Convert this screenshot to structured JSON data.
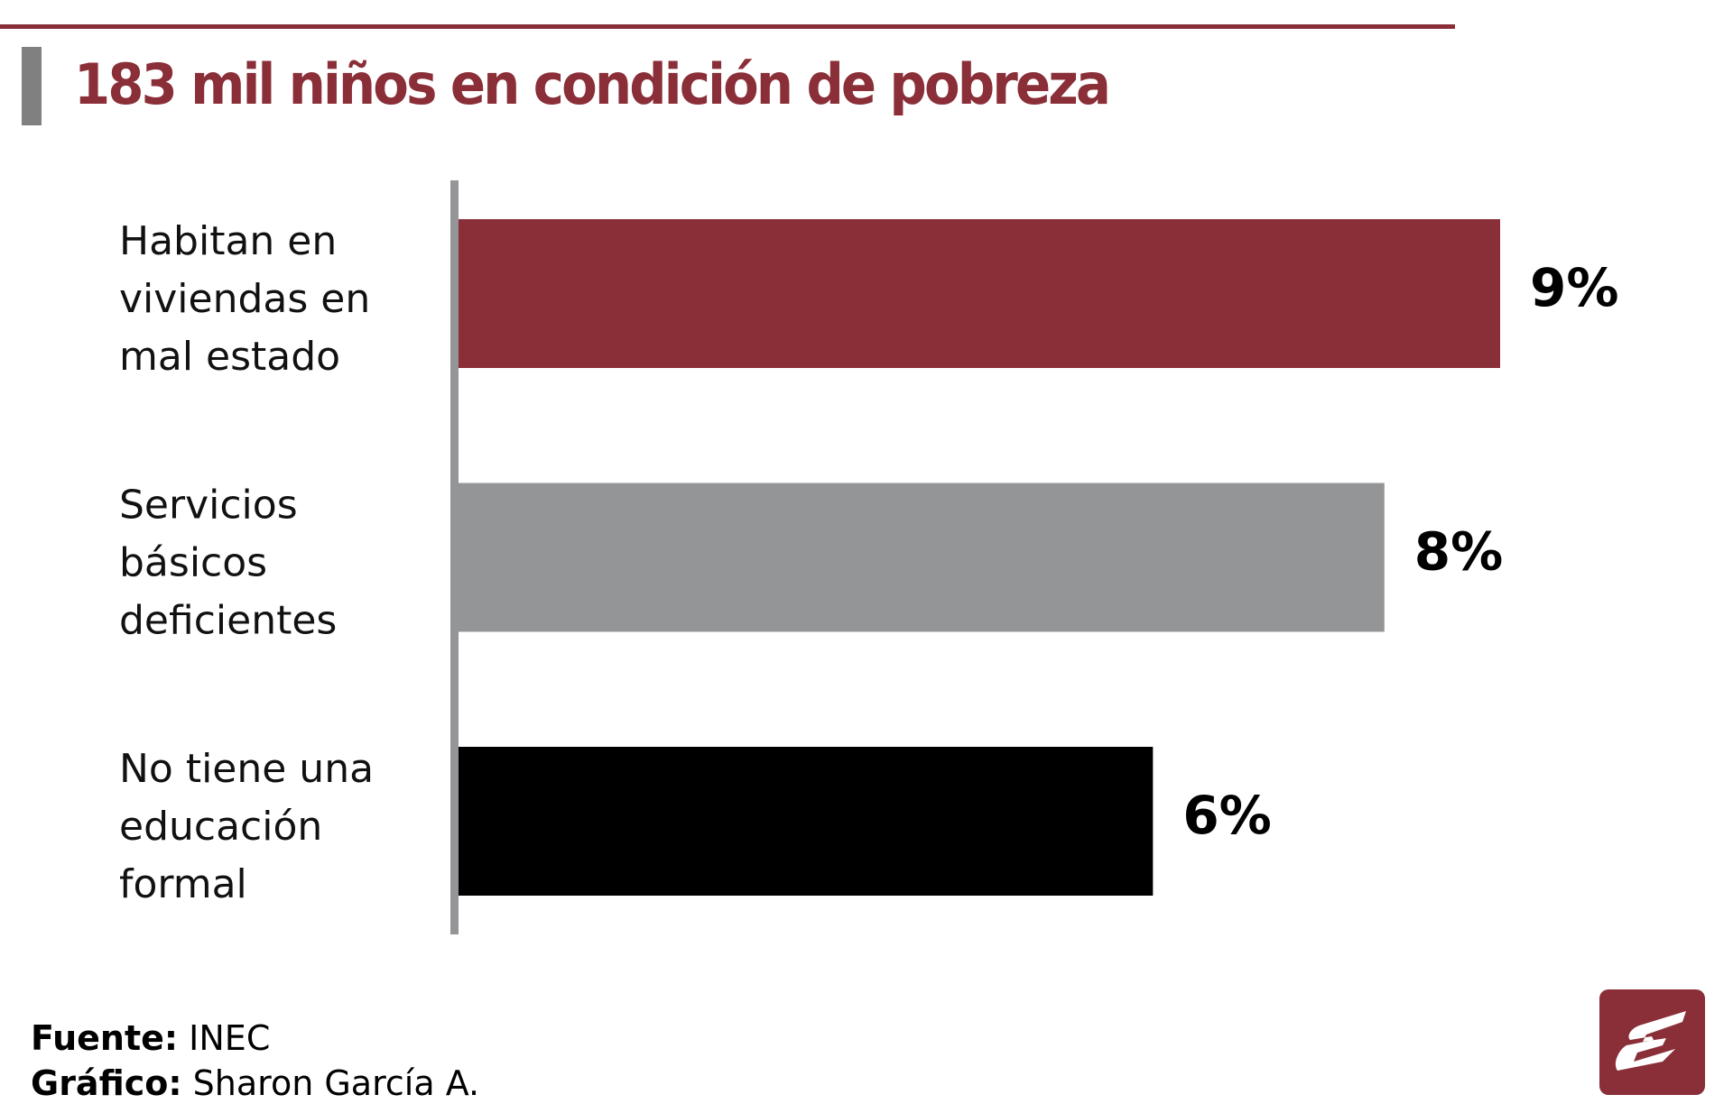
{
  "header": {
    "title": "183 mil niños en condición de pobreza"
  },
  "chart_data": {
    "type": "bar",
    "orientation": "horizontal",
    "title": "183 mil niños en condición de pobreza",
    "xlabel": "",
    "ylabel": "",
    "xlim": [
      0,
      9
    ],
    "grid": false,
    "categories": [
      [
        "Habitan en",
        "viviendas en",
        "mal estado"
      ],
      [
        "Servicios",
        "básicos",
        "deficientes"
      ],
      [
        "No tiene una",
        "educación",
        "formal"
      ]
    ],
    "values": [
      9,
      8,
      6
    ],
    "value_labels": [
      "9%",
      "8%",
      "6%"
    ],
    "unit": "%",
    "colors": [
      "#8a2e38",
      "#939597",
      "#000000"
    ]
  },
  "footer": {
    "source_label": "Fuente:",
    "source_value": "INEC",
    "graphic_label": "Gráfico:",
    "graphic_value": "Sharon García A."
  },
  "logo": {
    "letter": "E",
    "color": "#8a2e38"
  }
}
